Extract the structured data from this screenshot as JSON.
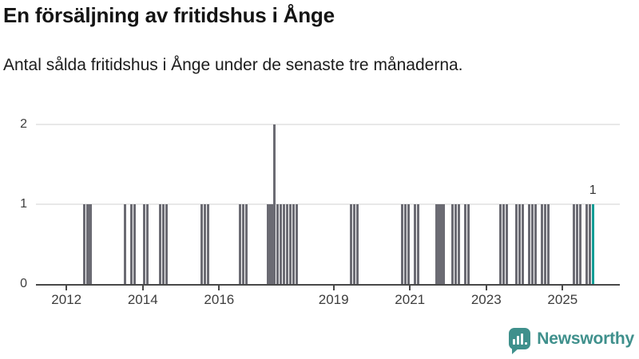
{
  "header": {
    "title": "En försäljning av fritidshus i Ånge",
    "subtitle": "Antal sålda fritidshus i Ånge under de senaste tre månaderna."
  },
  "chart_data": {
    "type": "bar",
    "title": "En försäljning av fritidshus i Ånge",
    "subtitle": "Antal sålda fritidshus i Ånge under de senaste tre månaderna.",
    "ylabel": "",
    "xlabel": "",
    "ylim": [
      0,
      2
    ],
    "y_ticks": [
      0,
      1,
      2
    ],
    "x_ticks": [
      2012,
      2014,
      2016,
      2019,
      2021,
      2023,
      2025
    ],
    "x_domain": [
      2011.2,
      2026.5
    ],
    "grid": "horizontal",
    "bar_color": "#6b6b73",
    "highlight_color": "#119c95",
    "axis_color": "#484848",
    "last_value_label": "1",
    "highlight_last": true,
    "points": [
      [
        2012,
        6,
        1
      ],
      [
        2012,
        7,
        1
      ],
      [
        2012,
        8,
        1
      ],
      [
        2013,
        7,
        1
      ],
      [
        2013,
        9,
        1
      ],
      [
        2013,
        10,
        1
      ],
      [
        2014,
        1,
        1
      ],
      [
        2014,
        2,
        1
      ],
      [
        2014,
        6,
        1
      ],
      [
        2014,
        7,
        1
      ],
      [
        2014,
        8,
        1
      ],
      [
        2015,
        7,
        1
      ],
      [
        2015,
        8,
        1
      ],
      [
        2015,
        9,
        1
      ],
      [
        2016,
        7,
        1
      ],
      [
        2016,
        8,
        1
      ],
      [
        2016,
        9,
        1
      ],
      [
        2017,
        4,
        1
      ],
      [
        2017,
        5,
        1
      ],
      [
        2017,
        6,
        2
      ],
      [
        2017,
        7,
        1
      ],
      [
        2017,
        8,
        1
      ],
      [
        2017,
        9,
        1
      ],
      [
        2017,
        10,
        1
      ],
      [
        2017,
        11,
        1
      ],
      [
        2017,
        12,
        1
      ],
      [
        2018,
        1,
        1
      ],
      [
        2019,
        6,
        1
      ],
      [
        2019,
        7,
        1
      ],
      [
        2019,
        8,
        1
      ],
      [
        2020,
        10,
        1
      ],
      [
        2020,
        11,
        1
      ],
      [
        2020,
        12,
        1
      ],
      [
        2021,
        2,
        1
      ],
      [
        2021,
        3,
        1
      ],
      [
        2021,
        9,
        1
      ],
      [
        2021,
        10,
        1
      ],
      [
        2021,
        11,
        1
      ],
      [
        2022,
        2,
        1
      ],
      [
        2022,
        3,
        1
      ],
      [
        2022,
        4,
        1
      ],
      [
        2022,
        6,
        1
      ],
      [
        2022,
        7,
        1
      ],
      [
        2023,
        5,
        1
      ],
      [
        2023,
        6,
        1
      ],
      [
        2023,
        7,
        1
      ],
      [
        2023,
        10,
        1
      ],
      [
        2023,
        11,
        1
      ],
      [
        2023,
        12,
        1
      ],
      [
        2024,
        2,
        1
      ],
      [
        2024,
        3,
        1
      ],
      [
        2024,
        4,
        1
      ],
      [
        2024,
        6,
        1
      ],
      [
        2024,
        7,
        1
      ],
      [
        2024,
        8,
        1
      ],
      [
        2025,
        4,
        1
      ],
      [
        2025,
        5,
        1
      ],
      [
        2025,
        6,
        1
      ],
      [
        2025,
        8,
        1
      ],
      [
        2025,
        9,
        1
      ],
      [
        2025,
        10,
        1
      ]
    ]
  },
  "footer": {
    "brand": "Newsworthy"
  }
}
